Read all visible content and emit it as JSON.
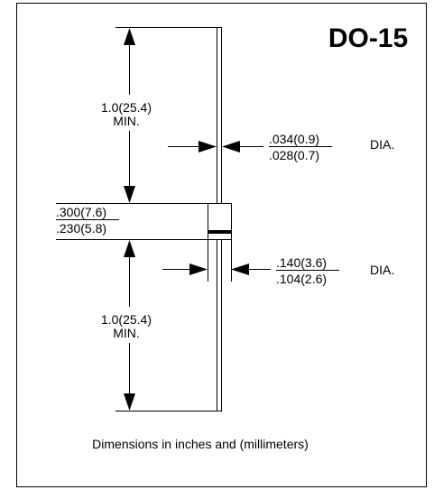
{
  "title": "DO-15",
  "lead_length_top": {
    "value": "1.0(25.4)",
    "note": "MIN."
  },
  "lead_diameter": {
    "max": ".034(0.9)",
    "min": ".028(0.7)",
    "unit": "DIA."
  },
  "body_length": {
    "max": ".300(7.6)",
    "min": ".230(5.8)"
  },
  "body_diameter": {
    "max": ".140(3.6)",
    "min": ".104(2.6)",
    "unit": "DIA."
  },
  "lead_length_bottom": {
    "value": "1.0(25.4)",
    "note": "MIN."
  },
  "footer": "Dimensions in inches and (millimeters)"
}
